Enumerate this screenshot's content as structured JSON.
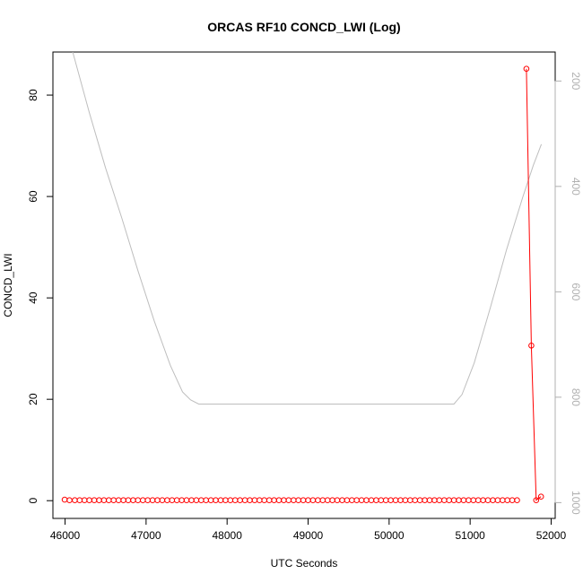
{
  "chart_data": {
    "type": "line",
    "title": "ORCAS RF10 CONCD_LWI (Log)",
    "xlabel": "UTC Seconds",
    "ylabel": "CONCD_LWI",
    "xlim": [
      45850,
      52050
    ],
    "ylim": [
      -3.5,
      88.5
    ],
    "x_ticks": [
      46000,
      47000,
      48000,
      49000,
      50000,
      51000,
      52000
    ],
    "y_ticks": [
      0,
      20,
      40,
      60,
      80
    ],
    "right_axis": {
      "reversed": true,
      "ylim": [
        1030,
        145
      ],
      "ticks": [
        200,
        400,
        600,
        800,
        1000
      ],
      "color": "#b0b0b0"
    },
    "series": [
      {
        "color": "#ff0000",
        "marker": "open-circle",
        "x_start": 46000,
        "x_step": 60,
        "count": 94,
        "baseline_value": 0.1,
        "special": [
          {
            "x": 45995,
            "y": 0.2
          },
          {
            "x": 46055,
            "y": 0.1
          },
          {
            "x": 51695,
            "y": 85.2
          },
          {
            "x": 51755,
            "y": 30.6
          },
          {
            "x": 51815,
            "y": 0.1
          },
          {
            "x": 51875,
            "y": 0.8
          }
        ]
      },
      {
        "color": "#bebebe",
        "marker": "none",
        "axis": "right",
        "points": [
          [
            46095,
            145
          ],
          [
            46300,
            260
          ],
          [
            46500,
            365
          ],
          [
            46700,
            460
          ],
          [
            46900,
            560
          ],
          [
            47100,
            655
          ],
          [
            47300,
            740
          ],
          [
            47450,
            790
          ],
          [
            47550,
            805
          ],
          [
            47650,
            813
          ],
          [
            48000,
            813
          ],
          [
            49000,
            813
          ],
          [
            50000,
            813
          ],
          [
            50800,
            813
          ],
          [
            50900,
            795
          ],
          [
            51050,
            735
          ],
          [
            51250,
            630
          ],
          [
            51450,
            520
          ],
          [
            51650,
            420
          ],
          [
            51780,
            360
          ],
          [
            51880,
            320
          ]
        ]
      }
    ]
  }
}
